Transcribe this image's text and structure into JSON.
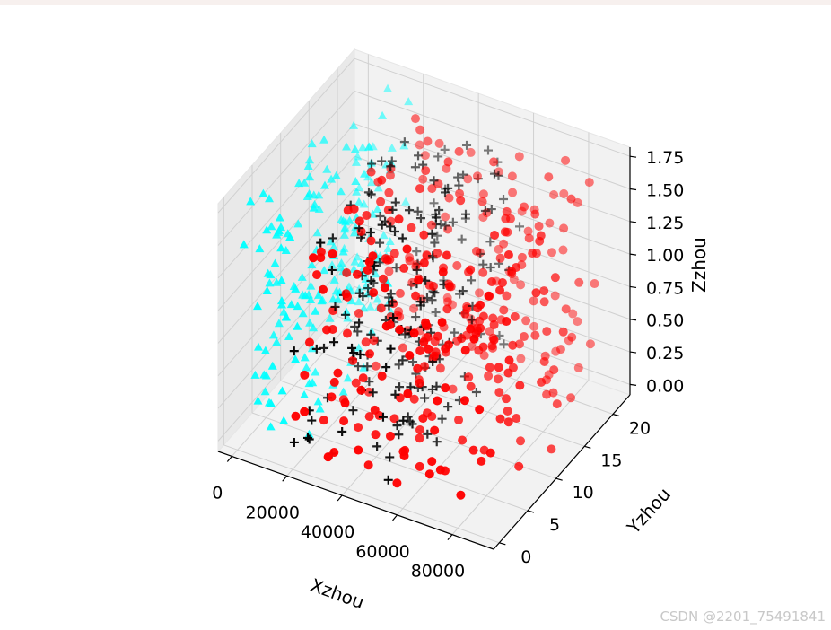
{
  "chart_data": {
    "type": "scatter",
    "projection": "3d",
    "xlabel": "Xzhou",
    "ylabel": "Yzhou",
    "zlabel": "Zzhou",
    "xlim": [
      -5000,
      95000
    ],
    "ylim": [
      -1,
      23
    ],
    "zlim": [
      -0.08,
      1.82
    ],
    "x_ticks": [
      "0",
      "20000",
      "40000",
      "60000",
      "80000"
    ],
    "y_ticks": [
      "0",
      "5",
      "10",
      "15",
      "20"
    ],
    "z_ticks": [
      "0.00",
      "0.25",
      "0.50",
      "0.75",
      "1.00",
      "1.25",
      "1.50",
      "1.75"
    ],
    "grid": true,
    "series": [
      {
        "marker": "triangle",
        "color": "#00ffff",
        "count": 200,
        "x_range": [
          0,
          20000
        ],
        "y_range": [
          0,
          22
        ],
        "z_range": [
          0.0,
          1.75
        ]
      },
      {
        "marker": "plus",
        "color": "#000000",
        "count": 200,
        "x_range": [
          20000,
          60000
        ],
        "y_range": [
          0,
          22
        ],
        "z_range": [
          0.0,
          1.75
        ]
      },
      {
        "marker": "circle",
        "color": "#ff0000",
        "count": 350,
        "x_range": [
          20000,
          90000
        ],
        "y_range": [
          0,
          22
        ],
        "z_range": [
          0.0,
          1.75
        ]
      }
    ]
  },
  "watermark": "CSDN @2201_75491841"
}
